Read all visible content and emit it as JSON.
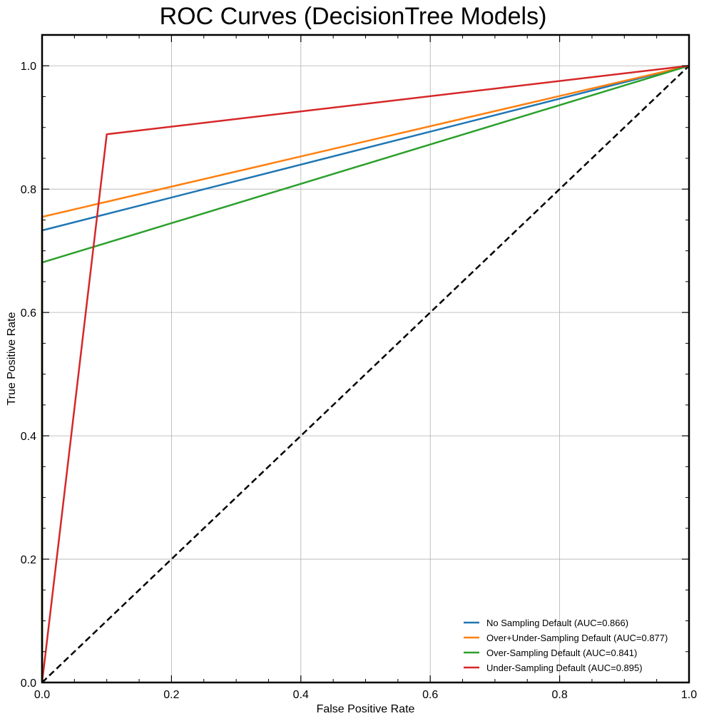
{
  "chart_data": {
    "type": "line",
    "title": "ROC Curves (DecisionTree Models)",
    "xlabel": "False Positive Rate",
    "ylabel": "True Positive Rate",
    "xlim": [
      0,
      1
    ],
    "ylim": [
      0,
      1.05
    ],
    "xticks": [
      "0.0",
      "0.2",
      "0.4",
      "0.6",
      "0.8",
      "1.0"
    ],
    "yticks": [
      "0.0",
      "0.2",
      "0.4",
      "0.6",
      "0.8",
      "1.0"
    ],
    "grid": true,
    "legend_position": "lower-right",
    "series": [
      {
        "name": "No Sampling Default (AUC=0.866)",
        "color": "#1f77b4",
        "x": [
          0,
          0,
          1
        ],
        "y": [
          0,
          0.733,
          1
        ]
      },
      {
        "name": "Over+Under-Sampling Default (AUC=0.877)",
        "color": "#ff7f0e",
        "x": [
          0,
          0,
          1
        ],
        "y": [
          0,
          0.755,
          1
        ]
      },
      {
        "name": "Over-Sampling Default (AUC=0.841)",
        "color": "#2ca02c",
        "x": [
          0,
          0,
          1
        ],
        "y": [
          0,
          0.681,
          1
        ]
      },
      {
        "name": "Under-Sampling Default (AUC=0.895)",
        "color": "#d62728",
        "x": [
          0,
          0.1,
          1
        ],
        "y": [
          0,
          0.889,
          1
        ]
      }
    ],
    "reference_line": {
      "style": "dashed",
      "color": "#000000",
      "x": [
        0,
        1
      ],
      "y": [
        0,
        1
      ]
    }
  }
}
